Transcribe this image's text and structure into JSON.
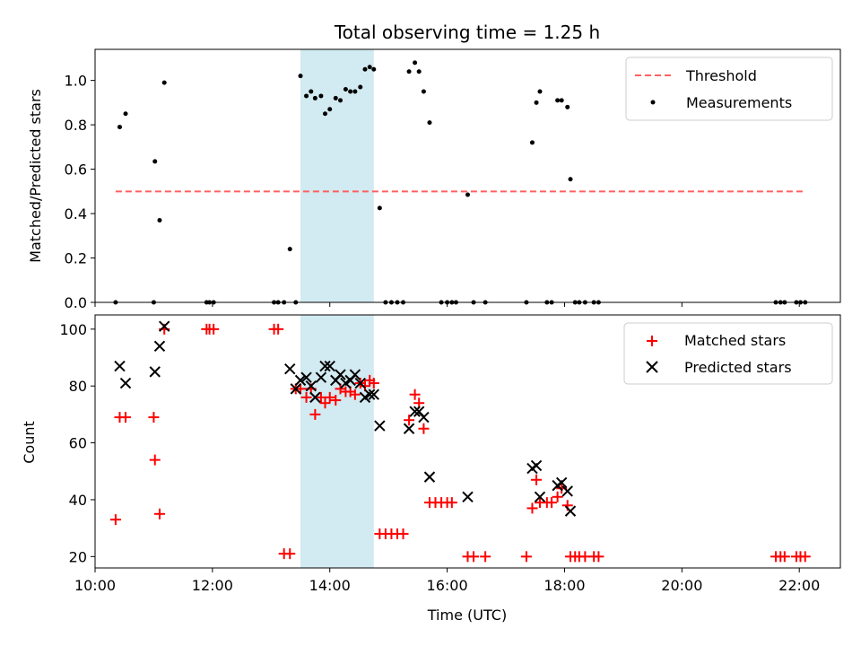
{
  "chart_data": {
    "title": "Total observing time = 1.25 h",
    "xlabel": "Time (UTC)",
    "x_unit": "hours UTC (decimal)",
    "xlim": [
      10.0,
      22.7
    ],
    "x_ticks": [
      10,
      12,
      14,
      16,
      18,
      20,
      22
    ],
    "x_tick_labels": [
      "10:00",
      "12:00",
      "14:00",
      "16:00",
      "18:00",
      "20:00",
      "22:00"
    ],
    "highlight_span": {
      "x": [
        13.5,
        14.75
      ],
      "color": "#add8e6"
    },
    "panels": [
      {
        "type": "scatter",
        "ylabel": "Matched/Predicted stars",
        "ylim": [
          0,
          1.14
        ],
        "y_ticks": [
          0.0,
          0.2,
          0.4,
          0.6,
          0.8,
          1.0
        ],
        "y_tick_labels": [
          "0.0",
          "0.2",
          "0.4",
          "0.6",
          "0.8",
          "1.0"
        ],
        "legend_position": "top-right",
        "threshold": {
          "name": "Threshold",
          "y": 0.5,
          "x": [
            10.35,
            22.1
          ],
          "color": "#ff6060"
        },
        "series": [
          {
            "name": "Measurements",
            "marker": "dot",
            "color": "#000000",
            "points": [
              [
                10.35,
                0.0
              ],
              [
                10.42,
                0.79
              ],
              [
                10.52,
                0.85
              ],
              [
                11.0,
                0.0
              ],
              [
                11.02,
                0.635
              ],
              [
                11.1,
                0.37
              ],
              [
                11.18,
                0.99
              ],
              [
                11.9,
                0.0
              ],
              [
                11.95,
                0.0
              ],
              [
                12.02,
                0.0
              ],
              [
                13.05,
                0.0
              ],
              [
                13.12,
                0.0
              ],
              [
                13.22,
                0.0
              ],
              [
                13.32,
                0.24
              ],
              [
                13.42,
                0.0
              ],
              [
                13.5,
                1.02
              ],
              [
                13.6,
                0.93
              ],
              [
                13.68,
                0.95
              ],
              [
                13.75,
                0.92
              ],
              [
                13.85,
                0.93
              ],
              [
                13.92,
                0.85
              ],
              [
                14.0,
                0.87
              ],
              [
                14.1,
                0.92
              ],
              [
                14.18,
                0.91
              ],
              [
                14.27,
                0.96
              ],
              [
                14.35,
                0.95
              ],
              [
                14.43,
                0.95
              ],
              [
                14.52,
                0.97
              ],
              [
                14.6,
                1.05
              ],
              [
                14.68,
                1.06
              ],
              [
                14.75,
                1.05
              ],
              [
                14.85,
                0.425
              ],
              [
                14.95,
                0.0
              ],
              [
                15.05,
                0.0
              ],
              [
                15.15,
                0.0
              ],
              [
                15.25,
                0.0
              ],
              [
                15.35,
                1.04
              ],
              [
                15.45,
                1.08
              ],
              [
                15.52,
                1.04
              ],
              [
                15.6,
                0.95
              ],
              [
                15.7,
                0.81
              ],
              [
                15.9,
                0.0
              ],
              [
                16.0,
                0.0
              ],
              [
                16.08,
                0.0
              ],
              [
                16.15,
                0.0
              ],
              [
                16.35,
                0.485
              ],
              [
                16.45,
                0.0
              ],
              [
                16.65,
                0.0
              ],
              [
                17.35,
                0.0
              ],
              [
                17.45,
                0.72
              ],
              [
                17.52,
                0.9
              ],
              [
                17.58,
                0.95
              ],
              [
                17.7,
                0.0
              ],
              [
                17.78,
                0.0
              ],
              [
                17.88,
                0.91
              ],
              [
                17.95,
                0.91
              ],
              [
                18.05,
                0.88
              ],
              [
                18.1,
                0.555
              ],
              [
                18.18,
                0.0
              ],
              [
                18.25,
                0.0
              ],
              [
                18.35,
                0.0
              ],
              [
                18.5,
                0.0
              ],
              [
                18.58,
                0.0
              ],
              [
                21.6,
                0.0
              ],
              [
                21.68,
                0.0
              ],
              [
                21.75,
                0.0
              ],
              [
                21.95,
                0.0
              ],
              [
                22.02,
                0.0
              ],
              [
                22.1,
                0.0
              ]
            ]
          }
        ]
      },
      {
        "type": "scatter",
        "ylabel": "Count",
        "ylim": [
          16,
          105
        ],
        "y_ticks": [
          20,
          40,
          60,
          80,
          100
        ],
        "y_tick_labels": [
          "20",
          "40",
          "60",
          "80",
          "100"
        ],
        "legend_position": "top-right",
        "series": [
          {
            "name": "Matched stars",
            "marker": "plus",
            "color": "#ff0000",
            "points": [
              [
                10.35,
                33
              ],
              [
                10.42,
                69
              ],
              [
                10.52,
                69
              ],
              [
                11.0,
                69
              ],
              [
                11.02,
                54
              ],
              [
                11.1,
                35
              ],
              [
                11.18,
                100
              ],
              [
                11.9,
                100
              ],
              [
                11.95,
                100
              ],
              [
                12.02,
                100
              ],
              [
                13.05,
                100
              ],
              [
                13.12,
                100
              ],
              [
                13.22,
                21
              ],
              [
                13.32,
                21
              ],
              [
                13.42,
                79
              ],
              [
                13.5,
                79
              ],
              [
                13.6,
                76
              ],
              [
                13.68,
                79
              ],
              [
                13.75,
                70
              ],
              [
                13.85,
                76
              ],
              [
                13.92,
                74
              ],
              [
                14.0,
                76
              ],
              [
                14.1,
                75
              ],
              [
                14.18,
                79
              ],
              [
                14.27,
                78
              ],
              [
                14.35,
                78
              ],
              [
                14.43,
                77
              ],
              [
                14.52,
                81
              ],
              [
                14.6,
                80
              ],
              [
                14.68,
                82
              ],
              [
                14.75,
                81
              ],
              [
                14.85,
                28
              ],
              [
                14.95,
                28
              ],
              [
                15.05,
                28
              ],
              [
                15.15,
                28
              ],
              [
                15.25,
                28
              ],
              [
                15.35,
                68
              ],
              [
                15.45,
                77
              ],
              [
                15.52,
                74
              ],
              [
                15.6,
                65
              ],
              [
                15.7,
                39
              ],
              [
                15.8,
                39
              ],
              [
                15.9,
                39
              ],
              [
                16.0,
                39
              ],
              [
                16.08,
                39
              ],
              [
                16.35,
                20
              ],
              [
                16.45,
                20
              ],
              [
                16.65,
                20
              ],
              [
                17.35,
                20
              ],
              [
                17.45,
                37
              ],
              [
                17.52,
                47
              ],
              [
                17.58,
                39
              ],
              [
                17.7,
                39
              ],
              [
                17.78,
                39
              ],
              [
                17.88,
                41
              ],
              [
                17.95,
                44
              ],
              [
                18.05,
                38
              ],
              [
                18.1,
                20
              ],
              [
                18.18,
                20
              ],
              [
                18.25,
                20
              ],
              [
                18.35,
                20
              ],
              [
                18.5,
                20
              ],
              [
                18.58,
                20
              ],
              [
                21.6,
                20
              ],
              [
                21.68,
                20
              ],
              [
                21.75,
                20
              ],
              [
                21.95,
                20
              ],
              [
                22.02,
                20
              ],
              [
                22.1,
                20
              ]
            ]
          },
          {
            "name": "Predicted stars",
            "marker": "x",
            "color": "#000000",
            "points": [
              [
                10.42,
                87
              ],
              [
                10.52,
                81
              ],
              [
                11.02,
                85
              ],
              [
                11.1,
                94
              ],
              [
                11.18,
                101
              ],
              [
                13.32,
                86
              ],
              [
                13.42,
                79
              ],
              [
                13.5,
                82
              ],
              [
                13.6,
                83
              ],
              [
                13.68,
                80
              ],
              [
                13.75,
                76
              ],
              [
                13.85,
                83
              ],
              [
                13.92,
                87
              ],
              [
                14.0,
                87
              ],
              [
                14.1,
                82
              ],
              [
                14.18,
                84
              ],
              [
                14.27,
                81
              ],
              [
                14.35,
                82
              ],
              [
                14.43,
                84
              ],
              [
                14.52,
                81
              ],
              [
                14.6,
                76
              ],
              [
                14.68,
                77
              ],
              [
                14.75,
                77
              ],
              [
                14.85,
                66
              ],
              [
                15.35,
                65
              ],
              [
                15.45,
                71
              ],
              [
                15.52,
                71
              ],
              [
                15.6,
                69
              ],
              [
                15.7,
                48
              ],
              [
                16.35,
                41
              ],
              [
                17.45,
                51
              ],
              [
                17.52,
                52
              ],
              [
                17.58,
                41
              ],
              [
                17.88,
                45
              ],
              [
                17.95,
                46
              ],
              [
                18.05,
                43
              ],
              [
                18.1,
                36
              ]
            ]
          }
        ]
      }
    ]
  }
}
